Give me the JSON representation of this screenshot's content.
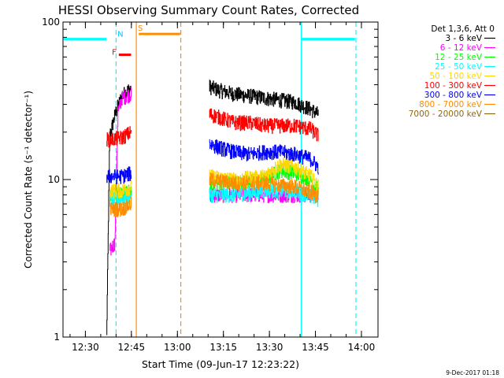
{
  "chart_data": {
    "type": "line",
    "title": "HESSI Observing Summary Count Rates, Corrected",
    "xlabel": "Start Time (09-Jun-17 12:23:22)",
    "ylabel": "Corrected Count Rate (s⁻¹ detector⁻¹)",
    "y_scale": "log",
    "ylim": [
      1,
      100
    ],
    "xlim_minutes": [
      -0.7,
      102
    ],
    "x_ticks": [
      {
        "min": 6.6,
        "label": "12:30"
      },
      {
        "min": 21.6,
        "label": "12:45"
      },
      {
        "min": 36.6,
        "label": "13:00"
      },
      {
        "min": 51.6,
        "label": "13:15"
      },
      {
        "min": 66.6,
        "label": "13:30"
      },
      {
        "min": 81.6,
        "label": "13:45"
      },
      {
        "min": 96.6,
        "label": "14:00"
      }
    ],
    "y_ticks": [
      {
        "value": 1,
        "label": "1"
      },
      {
        "value": 10,
        "label": "10"
      },
      {
        "value": 100,
        "label": "100"
      }
    ],
    "legend": {
      "header": "Det 1,3,6, Att 0",
      "placement": "right-outside"
    },
    "series": [
      {
        "name": "3 - 6 keV",
        "color": "#000000",
        "segments": [
          {
            "x": [
              13.5,
              14.5,
              16.5,
              18.5,
              20.5,
              21.5
            ],
            "y": [
              1.0,
              19,
              27,
              34,
              37,
              38
            ]
          },
          {
            "x": [
              47,
              50,
              55,
              60,
              65,
              70,
              75,
              80,
              82.5
            ],
            "y": [
              39,
              37,
              35,
              34,
              33,
              32,
              31,
              28,
              26
            ]
          }
        ]
      },
      {
        "name": "6 - 12 keV",
        "color": "#ff00ff",
        "segments": [
          {
            "x": [
              14.5,
              16.2,
              17.2,
              18.5,
              21.5
            ],
            "y": [
              3.5,
              4.0,
              27,
              33,
              35
            ]
          },
          {
            "x": [
              47,
              82.5
            ],
            "y": [
              8,
              8
            ]
          }
        ]
      },
      {
        "name": "12 - 25 keV",
        "color": "#00ff00",
        "segments": [
          {
            "x": [
              14.5,
              18.5,
              21.5
            ],
            "y": [
              8,
              8,
              8.5
            ]
          },
          {
            "x": [
              47,
              55,
              65,
              70,
              75,
              80,
              82.5
            ],
            "y": [
              9.5,
              9.5,
              10,
              11.5,
              11,
              10,
              8.5
            ]
          }
        ]
      },
      {
        "name": "25 - 50 keV",
        "color": "#00ffff",
        "segments": [
          {
            "x": [
              14.5,
              18.5,
              21.5
            ],
            "y": [
              7.5,
              7.5,
              8
            ]
          },
          {
            "x": [
              47,
              55,
              65,
              75,
              82.5
            ],
            "y": [
              8,
              8,
              8.5,
              8.5,
              7.5
            ]
          }
        ]
      },
      {
        "name": "50 - 100 keV",
        "color": "#ffd700",
        "segments": [
          {
            "x": [
              14.5,
              18.5,
              21.5
            ],
            "y": [
              8.5,
              8.5,
              9
            ]
          },
          {
            "x": [
              47,
              55,
              65,
              70,
              75,
              80,
              82.5
            ],
            "y": [
              10.5,
              10,
              10.5,
              12.5,
              12,
              10.5,
              9
            ]
          }
        ]
      },
      {
        "name": "100 - 300 keV",
        "color": "#ff0000",
        "segments": [
          {
            "x": [
              13.5,
              15,
              18.5,
              21.5
            ],
            "y": [
              18,
              18,
              18.5,
              20
            ]
          },
          {
            "x": [
              47,
              50,
              55,
              60,
              65,
              70,
              75,
              80,
              82.5
            ],
            "y": [
              26,
              25,
              23,
              23,
              22,
              22,
              22,
              21,
              19
            ]
          }
        ]
      },
      {
        "name": "300 - 800 keV",
        "color": "#0000ff",
        "segments": [
          {
            "x": [
              13.5,
              15,
              18.5,
              21.5
            ],
            "y": [
              10.5,
              10.5,
              10.5,
              11
            ]
          },
          {
            "x": [
              47,
              50,
              55,
              60,
              65,
              70,
              75,
              80,
              82.5
            ],
            "y": [
              17,
              16,
              15,
              14.5,
              15,
              15,
              14.5,
              13.5,
              12
            ]
          }
        ]
      },
      {
        "name": "800 - 7000 keV",
        "color": "#ff8c00",
        "segments": [
          {
            "x": [
              14.5,
              18.5,
              21.5
            ],
            "y": [
              6.5,
              6.5,
              7
            ]
          },
          {
            "x": [
              47,
              55,
              65,
              75,
              82.5
            ],
            "y": [
              10,
              9.5,
              9.5,
              9,
              8
            ]
          }
        ]
      },
      {
        "name": "7000 - 20000 keV",
        "color": "#8b6914",
        "segments": []
      }
    ],
    "annotations": {
      "vertical_solid": [
        {
          "x": 23.2,
          "color": "#ff8c00"
        },
        {
          "x": 77.0,
          "color": "#00ffff"
        }
      ],
      "vertical_dashed": [
        {
          "x": 16.6,
          "color": "#00ffff"
        },
        {
          "x": 37.7,
          "color": "#ff8c00"
        },
        {
          "x": 94.8,
          "color": "#00ffff"
        }
      ],
      "night_bars": [
        {
          "x0": -0.5,
          "x1": 13.5,
          "y": 78,
          "color": "#00ffff"
        },
        {
          "x0": 77.0,
          "x1": 94.5,
          "y": 78,
          "color": "#00ffff"
        }
      ],
      "flags": [
        {
          "label": "N",
          "x": 18.0,
          "label_y": 81,
          "color": "#00c8ff"
        },
        {
          "label": "S",
          "x": 24.5,
          "label_y": 88,
          "color": "#ff8c00"
        },
        {
          "label": "F",
          "x": 16.0,
          "label_y": 62,
          "color": "#ff0000"
        }
      ],
      "flag_bars": [
        {
          "x0": 17.5,
          "x1": 21.5,
          "y": 62,
          "color": "#ff0000"
        },
        {
          "x0": 24.0,
          "x1": 37.5,
          "y": 84,
          "color": "#ff8c00"
        }
      ]
    },
    "timestamp": "9-Dec-2017 01:18"
  }
}
